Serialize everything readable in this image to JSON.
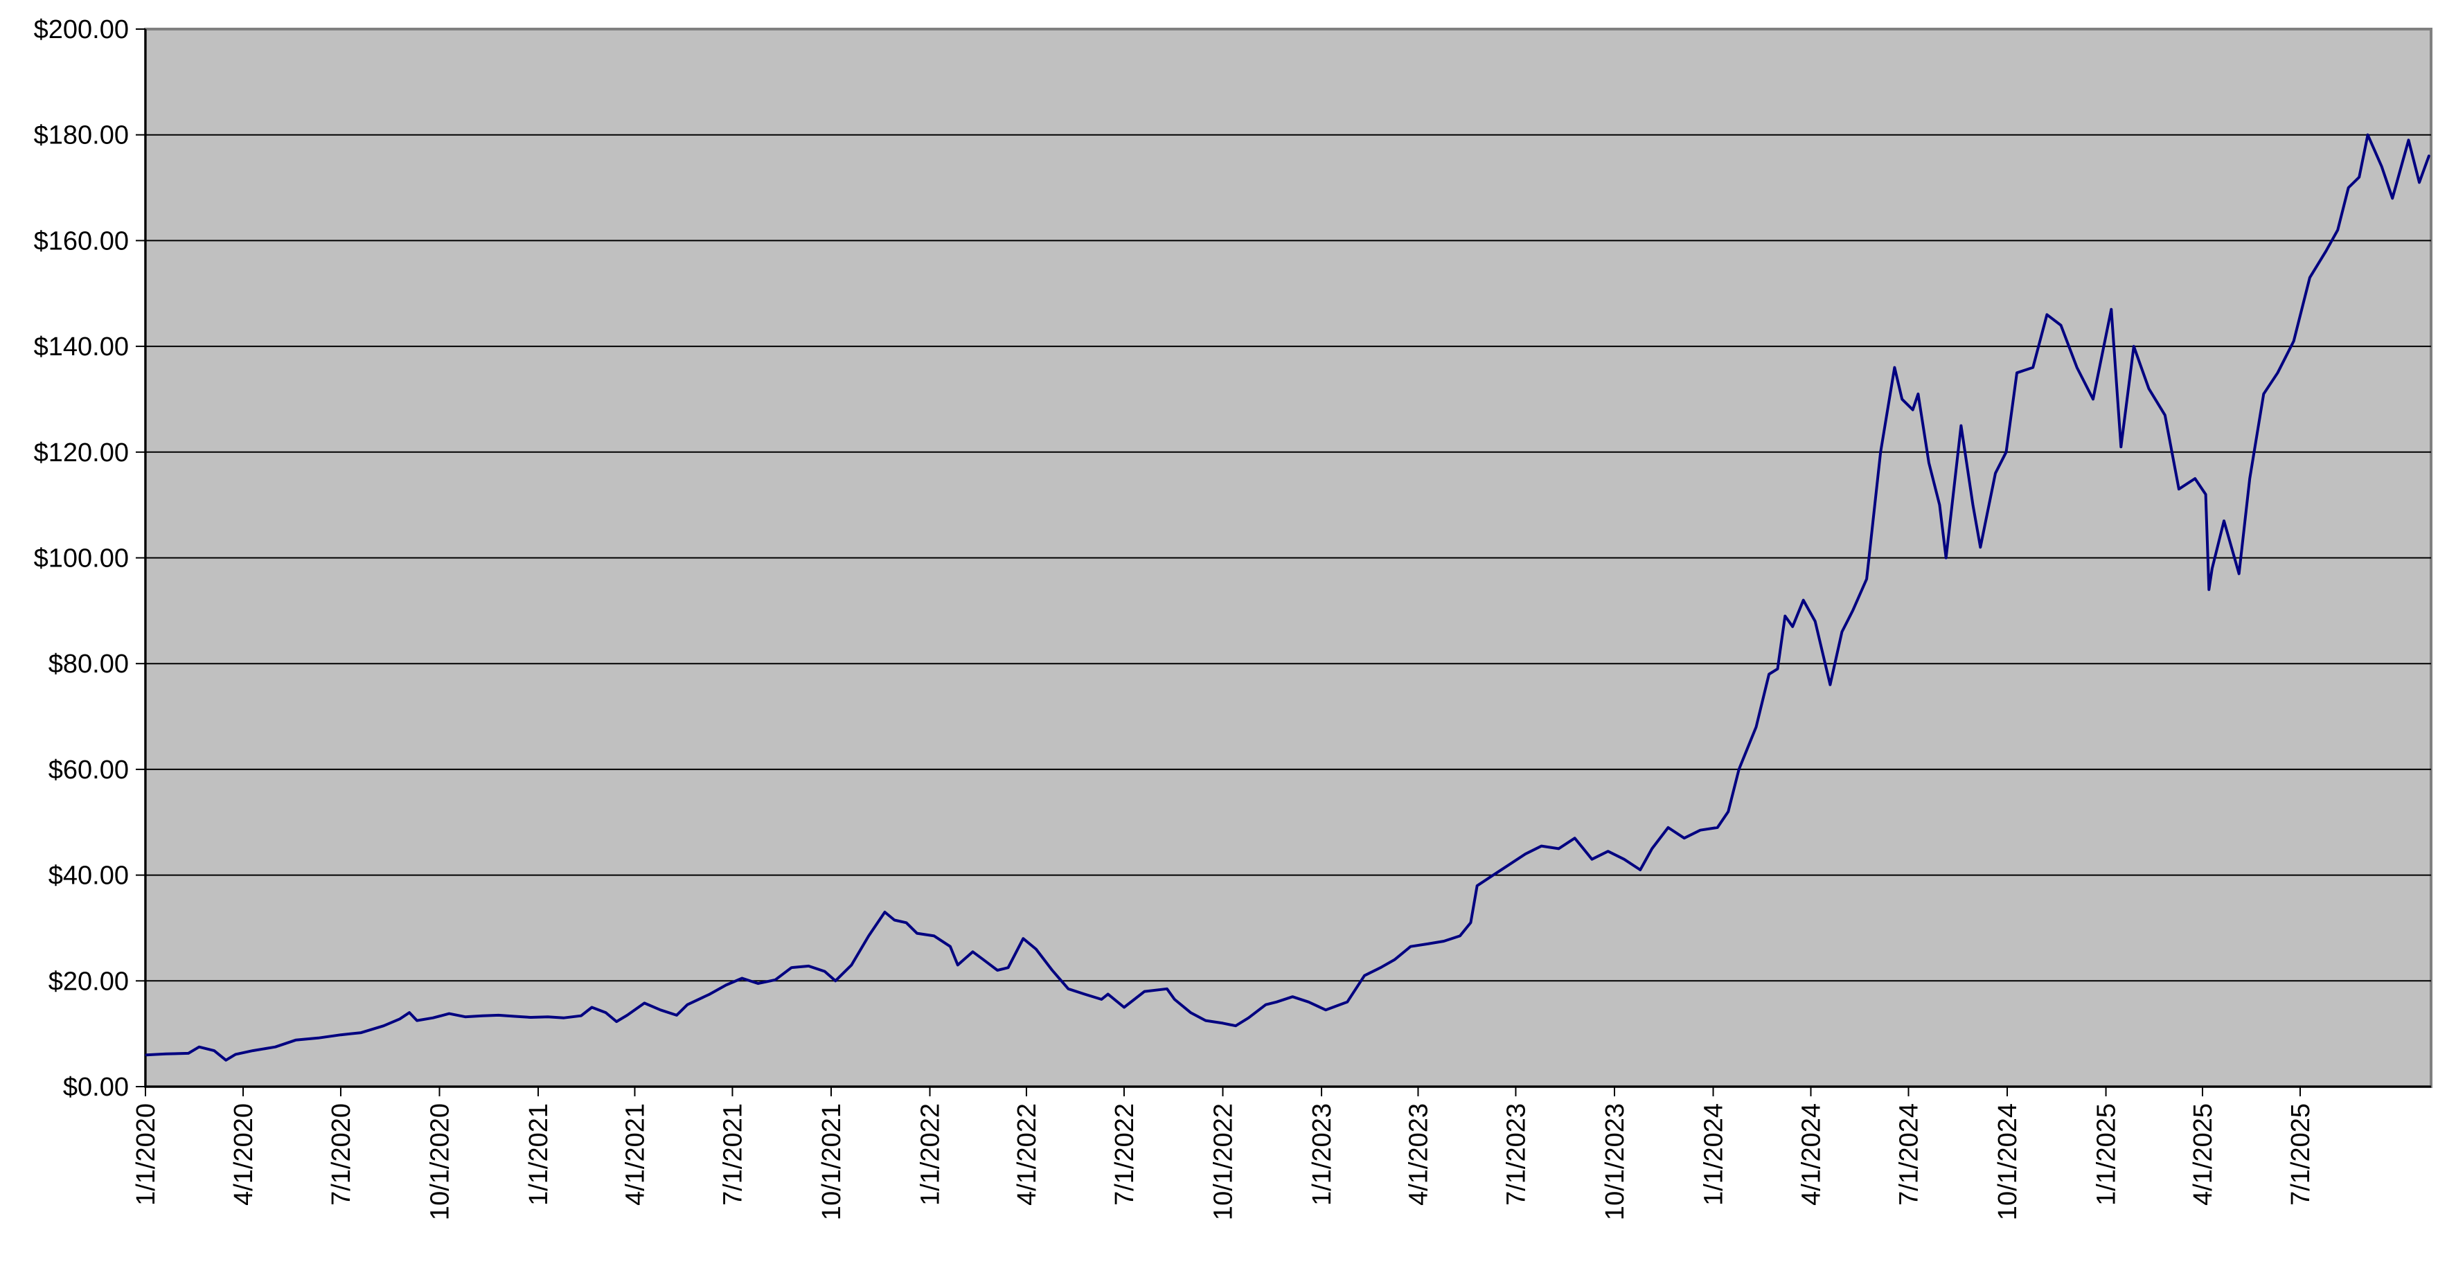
{
  "chart_data": {
    "type": "line",
    "title": "",
    "xlabel": "",
    "ylabel": "",
    "ylim": [
      0,
      200
    ],
    "xlim": [
      "2020-01-01",
      "2025-10-31"
    ],
    "grid": "horizontal",
    "legend": "none",
    "y_ticks": [
      0,
      20,
      40,
      60,
      80,
      100,
      120,
      140,
      160,
      180,
      200
    ],
    "y_tick_labels": [
      "$0.00",
      "$20.00",
      "$40.00",
      "$60.00",
      "$80.00",
      "$100.00",
      "$120.00",
      "$140.00",
      "$160.00",
      "$180.00",
      "$200.00"
    ],
    "x_ticks": [
      "2020-01-01",
      "2020-04-01",
      "2020-07-01",
      "2020-10-01",
      "2021-01-01",
      "2021-04-01",
      "2021-07-01",
      "2021-10-01",
      "2022-01-01",
      "2022-04-01",
      "2022-07-01",
      "2022-10-01",
      "2023-01-01",
      "2023-04-01",
      "2023-07-01",
      "2023-10-01",
      "2024-01-01",
      "2024-04-01",
      "2024-07-01",
      "2024-10-01",
      "2025-01-01",
      "2025-04-01",
      "2025-07-01"
    ],
    "x_tick_labels": [
      "1/1/2020",
      "4/1/2020",
      "7/1/2020",
      "10/1/2020",
      "1/1/2021",
      "4/1/2021",
      "7/1/2021",
      "10/1/2021",
      "1/1/2022",
      "4/1/2022",
      "7/1/2022",
      "10/1/2022",
      "1/1/2023",
      "4/1/2023",
      "7/1/2023",
      "10/1/2023",
      "1/1/2024",
      "4/1/2024",
      "7/1/2024",
      "10/1/2024",
      "1/1/2025",
      "4/1/2025",
      "7/1/2025"
    ],
    "colors": {
      "plot_background": "#C0C0C0",
      "line": "#000080",
      "gridline": "#000000"
    },
    "series": [
      {
        "x": [
          "2020-01-02",
          "2020-01-20",
          "2020-02-10",
          "2020-02-20",
          "2020-03-05",
          "2020-03-16",
          "2020-03-25",
          "2020-04-10",
          "2020-05-01",
          "2020-05-20",
          "2020-06-10",
          "2020-07-01",
          "2020-07-20",
          "2020-08-10",
          "2020-08-25",
          "2020-09-03",
          "2020-09-10",
          "2020-09-25",
          "2020-10-10",
          "2020-10-25",
          "2020-11-10",
          "2020-11-25",
          "2020-12-10",
          "2020-12-25",
          "2021-01-10",
          "2021-01-25",
          "2021-02-10",
          "2021-02-20",
          "2021-03-05",
          "2021-03-15",
          "2021-03-25",
          "2021-04-10",
          "2021-04-25",
          "2021-05-10",
          "2021-05-20",
          "2021-06-10",
          "2021-06-25",
          "2021-07-10",
          "2021-07-25",
          "2021-08-10",
          "2021-08-25",
          "2021-09-10",
          "2021-09-25",
          "2021-10-05",
          "2021-10-20",
          "2021-11-05",
          "2021-11-20",
          "2021-11-29",
          "2021-12-10",
          "2021-12-20",
          "2022-01-05",
          "2022-01-20",
          "2022-01-27",
          "2022-02-10",
          "2022-02-20",
          "2022-03-05",
          "2022-03-15",
          "2022-03-29",
          "2022-04-10",
          "2022-04-25",
          "2022-05-10",
          "2022-05-25",
          "2022-06-10",
          "2022-06-16",
          "2022-07-01",
          "2022-07-20",
          "2022-08-10",
          "2022-08-17",
          "2022-09-01",
          "2022-09-15",
          "2022-10-01",
          "2022-10-13",
          "2022-10-25",
          "2022-11-10",
          "2022-11-20",
          "2022-12-05",
          "2022-12-20",
          "2023-01-05",
          "2023-01-25",
          "2023-02-10",
          "2023-02-25",
          "2023-03-10",
          "2023-03-25",
          "2023-04-10",
          "2023-04-25",
          "2023-05-10",
          "2023-05-20",
          "2023-05-26",
          "2023-06-10",
          "2023-06-25",
          "2023-07-10",
          "2023-07-25",
          "2023-08-10",
          "2023-08-25",
          "2023-09-10",
          "2023-09-25",
          "2023-10-10",
          "2023-10-25",
          "2023-11-05",
          "2023-11-20",
          "2023-12-05",
          "2023-12-20",
          "2024-01-05",
          "2024-01-15",
          "2024-01-25",
          "2024-02-10",
          "2024-02-22",
          "2024-03-01",
          "2024-03-08",
          "2024-03-15",
          "2024-03-25",
          "2024-04-05",
          "2024-04-19",
          "2024-04-30",
          "2024-05-10",
          "2024-05-23",
          "2024-06-05",
          "2024-06-18",
          "2024-06-25",
          "2024-07-05",
          "2024-07-10",
          "2024-07-20",
          "2024-07-30",
          "2024-08-05",
          "2024-08-19",
          "2024-08-30",
          "2024-09-06",
          "2024-09-20",
          "2024-09-30",
          "2024-10-10",
          "2024-10-25",
          "2024-11-07",
          "2024-11-20",
          "2024-12-05",
          "2024-12-20",
          "2025-01-06",
          "2025-01-15",
          "2025-01-27",
          "2025-02-10",
          "2025-02-25",
          "2025-03-10",
          "2025-03-25",
          "2025-04-04",
          "2025-04-07",
          "2025-04-10",
          "2025-04-21",
          "2025-05-05",
          "2025-05-15",
          "2025-05-28",
          "2025-06-10",
          "2025-06-25",
          "2025-07-10",
          "2025-07-25",
          "2025-08-05",
          "2025-08-15",
          "2025-08-25",
          "2025-09-02",
          "2025-09-15",
          "2025-09-25",
          "2025-10-10",
          "2025-10-20",
          "2025-10-29"
        ],
        "y": [
          6.0,
          6.2,
          6.3,
          7.5,
          6.8,
          5.0,
          6.1,
          6.8,
          7.5,
          8.8,
          9.2,
          9.8,
          10.2,
          11.5,
          12.8,
          14.0,
          12.5,
          13.0,
          13.8,
          13.2,
          13.4,
          13.5,
          13.3,
          13.1,
          13.2,
          13.0,
          13.4,
          15.0,
          14.0,
          12.3,
          13.5,
          15.8,
          14.5,
          13.5,
          15.5,
          17.5,
          19.2,
          20.5,
          19.5,
          20.2,
          22.5,
          22.8,
          21.8,
          20.0,
          23.0,
          28.5,
          33.0,
          31.5,
          31.0,
          29.0,
          28.5,
          26.5,
          23.0,
          25.5,
          24.0,
          22.0,
          22.5,
          28.0,
          26.0,
          22.0,
          18.5,
          17.5,
          16.5,
          17.5,
          15.0,
          18.0,
          18.5,
          16.5,
          14.0,
          12.5,
          12.0,
          11.5,
          13.0,
          15.5,
          16.0,
          17.0,
          16.0,
          14.5,
          16.0,
          21.0,
          22.5,
          24.0,
          26.5,
          27.0,
          27.5,
          28.5,
          31.0,
          38.0,
          40.0,
          42.0,
          44.0,
          45.5,
          45.0,
          47.0,
          43.0,
          44.5,
          43.0,
          41.0,
          45.0,
          49.0,
          47.0,
          48.5,
          49.0,
          52.0,
          60.0,
          68.0,
          78.0,
          79.0,
          89.0,
          87.0,
          92.0,
          88.0,
          76.0,
          86.0,
          90.0,
          96.0,
          120.0,
          136.0,
          130.0,
          128.0,
          131.0,
          118.0,
          110.0,
          100.0,
          125.0,
          110.0,
          102.0,
          116.0,
          120.0,
          135.0,
          136.0,
          146.0,
          144.0,
          136.0,
          130.0,
          147.0,
          121.0,
          140.0,
          132.0,
          127.0,
          113.0,
          115.0,
          112.0,
          94.0,
          98.0,
          107.0,
          97.0,
          115.0,
          131.0,
          135.0,
          141.0,
          153.0,
          158.0,
          162.0,
          170.0,
          172.0,
          180.0,
          174.0,
          168.0,
          179.0,
          171.0,
          176.0
        ]
      }
    ]
  }
}
